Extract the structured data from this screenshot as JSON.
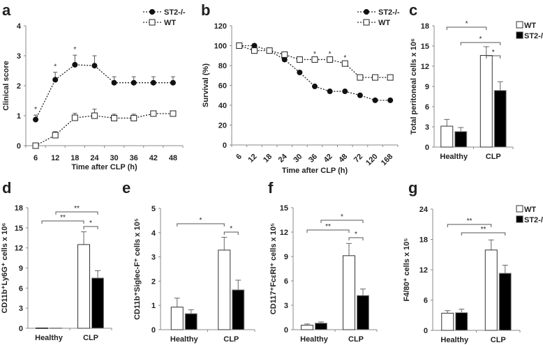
{
  "chart_data": [
    {
      "panel": "a",
      "type": "line",
      "xlabel": "Time after CLP (h)",
      "ylabel": "Clinical score",
      "ylim": [
        0,
        4
      ],
      "yticks": [
        0,
        1,
        2,
        3,
        4
      ],
      "categories": [
        "6",
        "12",
        "18",
        "24",
        "30",
        "36",
        "42",
        "48"
      ],
      "series": [
        {
          "name": "ST2-/-",
          "marker": "filled-circle",
          "values": [
            0.87,
            2.2,
            2.7,
            2.67,
            2.1,
            2.1,
            2.1,
            2.1
          ],
          "errors": [
            0.15,
            0.25,
            0.32,
            0.33,
            0.2,
            0.2,
            0.2,
            0.2
          ]
        },
        {
          "name": "WT",
          "marker": "open-square",
          "values": [
            0,
            0.35,
            0.93,
            1.0,
            0.92,
            0.92,
            1.07,
            1.07
          ],
          "errors": [
            0,
            0.12,
            0.15,
            0.22,
            0.13,
            0.13,
            0.05,
            0.05
          ]
        }
      ],
      "significance": [
        {
          "category": "6",
          "label": "*"
        },
        {
          "category": "12",
          "label": "*"
        },
        {
          "category": "18",
          "label": "*"
        }
      ],
      "legend": "top-right"
    },
    {
      "panel": "b",
      "type": "line",
      "xlabel": "Time after CLP (h)",
      "ylabel": "Survival (%)",
      "ylim": [
        0,
        120
      ],
      "yticks": [
        0,
        20,
        40,
        60,
        80,
        100,
        120
      ],
      "categories": [
        "6",
        "12",
        "18",
        "24",
        "30",
        "36",
        "42",
        "48",
        "72",
        "120",
        "168"
      ],
      "series": [
        {
          "name": "ST2-/-",
          "marker": "filled-circle",
          "values": [
            100,
            100,
            95,
            86,
            73,
            59,
            54,
            54,
            50,
            45,
            45
          ]
        },
        {
          "name": "WT",
          "marker": "open-square",
          "values": [
            100,
            95,
            95,
            91,
            86,
            86,
            86,
            82,
            68,
            68,
            68
          ]
        }
      ],
      "significance": [
        {
          "category": "36",
          "label": "*"
        },
        {
          "category": "42",
          "label": "*"
        },
        {
          "category": "48",
          "label": "*"
        }
      ],
      "legend": "top-right"
    },
    {
      "panel": "c",
      "type": "bar",
      "ylabel": "Total peritoneal cells x 10⁶",
      "ylim": [
        0,
        18
      ],
      "yticks": [
        0,
        3,
        6,
        9,
        12,
        15,
        18
      ],
      "categories": [
        "Healthy",
        "CLP"
      ],
      "series": [
        {
          "name": "WT",
          "values": [
            3.1,
            13.6
          ],
          "errors": [
            1.0,
            1.3
          ]
        },
        {
          "name": "ST2-/-",
          "values": [
            2.3,
            8.4
          ],
          "errors": [
            0.6,
            1.3
          ]
        }
      ],
      "brackets": [
        {
          "from": "Healthy WT",
          "to": "CLP WT",
          "label": "*"
        },
        {
          "from": "Healthy ST2-/-",
          "to": "CLP ST2-/-",
          "label": "*"
        },
        {
          "from": "CLP WT",
          "to": "CLP ST2-/-",
          "label": "*"
        }
      ],
      "legend": "top-right"
    },
    {
      "panel": "d",
      "type": "bar",
      "ylabel": "CD11b⁺Ly6G⁺ cells x 10⁶",
      "ylim": [
        0,
        18
      ],
      "yticks": [
        0,
        3,
        6,
        9,
        12,
        15,
        18
      ],
      "categories": [
        "Healthy",
        "CLP"
      ],
      "series": [
        {
          "name": "WT",
          "values": [
            0.05,
            12.5
          ],
          "errors": [
            0,
            1.9
          ]
        },
        {
          "name": "ST2-/-",
          "values": [
            0.05,
            7.5
          ],
          "errors": [
            0,
            1.1
          ]
        }
      ],
      "brackets": [
        {
          "from": "Healthy WT",
          "to": "CLP WT",
          "label": "**"
        },
        {
          "from": "Healthy ST2-/-",
          "to": "CLP ST2-/-",
          "label": "**"
        },
        {
          "from": "CLP WT",
          "to": "CLP ST2-/-",
          "label": "*"
        }
      ]
    },
    {
      "panel": "e",
      "type": "bar",
      "ylabel": "CD11b⁺Siglec-F⁺ cells x 10⁵",
      "ylim": [
        0,
        5
      ],
      "yticks": [
        0,
        1,
        2,
        3,
        4,
        5
      ],
      "categories": [
        "Healthy",
        "CLP"
      ],
      "series": [
        {
          "name": "WT",
          "values": [
            0.93,
            3.28
          ],
          "errors": [
            0.37,
            0.53
          ]
        },
        {
          "name": "ST2-/-",
          "values": [
            0.66,
            1.64
          ],
          "errors": [
            0.16,
            0.4
          ]
        }
      ],
      "brackets": [
        {
          "from": "Healthy WT",
          "to": "CLP WT",
          "label": "*"
        },
        {
          "from": "CLP WT",
          "to": "CLP ST2-/-",
          "label": "*"
        }
      ]
    },
    {
      "panel": "f",
      "type": "bar",
      "ylabel": "CD117⁺FcεRI⁺ cells x 10⁵",
      "ylim": [
        0,
        15
      ],
      "yticks": [
        0,
        3,
        6,
        9,
        12,
        15
      ],
      "categories": [
        "Healthy",
        "CLP"
      ],
      "series": [
        {
          "name": "WT",
          "values": [
            0.55,
            9.1
          ],
          "errors": [
            0.15,
            1.5
          ]
        },
        {
          "name": "ST2-/-",
          "values": [
            0.8,
            4.2
          ],
          "errors": [
            0.15,
            0.8
          ]
        }
      ],
      "brackets": [
        {
          "from": "Healthy ST2-/-",
          "to": "CLP ST2-/-",
          "label": "*"
        },
        {
          "from": "Healthy WT",
          "to": "CLP WT",
          "label": "**"
        },
        {
          "from": "CLP WT",
          "to": "CLP ST2-/-",
          "label": "*"
        }
      ]
    },
    {
      "panel": "g",
      "type": "bar",
      "ylabel": "F4/80⁺ cells x 10⁵",
      "ylim": [
        0,
        24
      ],
      "yticks": [
        0,
        6,
        12,
        18,
        24
      ],
      "categories": [
        "Healthy",
        "CLP"
      ],
      "series": [
        {
          "name": "WT",
          "values": [
            3.4,
            15.9
          ],
          "errors": [
            0.5,
            2.0
          ]
        },
        {
          "name": "ST2-/-",
          "values": [
            3.5,
            11.3
          ],
          "errors": [
            0.7,
            1.6
          ]
        }
      ],
      "brackets": [
        {
          "from": "Healthy WT",
          "to": "CLP WT",
          "label": "**"
        },
        {
          "from": "Healthy ST2-/-",
          "to": "CLP ST2-/-",
          "label": "**"
        }
      ],
      "legend": "top-right"
    }
  ]
}
